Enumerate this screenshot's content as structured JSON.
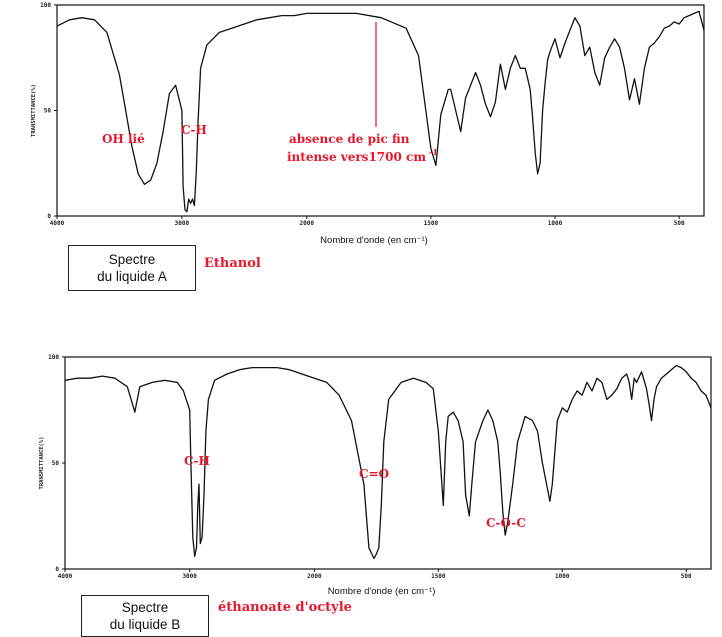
{
  "chart_data": [
    {
      "type": "line",
      "title": "",
      "xlabel": "Nombre d'onde (en cm⁻¹)",
      "ylabel": "TRANSMITTANCE(%)",
      "xlim": [
        4000,
        400
      ],
      "ylim": [
        0,
        100
      ],
      "x_ticks": [
        "4000",
        "3000",
        "2000",
        "1500",
        "1000",
        "500"
      ],
      "y_ticks": [
        "0",
        "50",
        "100"
      ],
      "grid": false,
      "series": [
        {
          "x": [
            4000,
            3900,
            3800,
            3700,
            3600,
            3500,
            3450,
            3400,
            3350,
            3300,
            3250,
            3200,
            3150,
            3100,
            3050,
            3000,
            2990,
            2975,
            2960,
            2945,
            2930,
            2915,
            2900,
            2885,
            2870,
            2850,
            2800,
            2700,
            2600,
            2500,
            2400,
            2300,
            2200,
            2100,
            2000,
            1900,
            1800,
            1700,
            1600,
            1550,
            1500,
            1480,
            1460,
            1445,
            1430,
            1420,
            1400,
            1380,
            1360,
            1340,
            1320,
            1300,
            1280,
            1260,
            1240,
            1220,
            1200,
            1180,
            1160,
            1140,
            1120,
            1100,
            1090,
            1080,
            1070,
            1060,
            1050,
            1040,
            1030,
            1020,
            1000,
            980,
            960,
            940,
            920,
            900,
            880,
            860,
            840,
            820,
            800,
            780,
            760,
            740,
            720,
            700,
            680,
            660,
            640,
            620,
            600,
            580,
            560,
            540,
            520,
            500,
            480,
            460,
            440,
            420,
            400
          ],
          "y": [
            90,
            93,
            94,
            93,
            87,
            67,
            50,
            33,
            20,
            15,
            17,
            25,
            40,
            58,
            62,
            50,
            14,
            3,
            2,
            8,
            6,
            8,
            5,
            20,
            45,
            70,
            81,
            87,
            89,
            91,
            93,
            94,
            95,
            95,
            96,
            96,
            96,
            94,
            89,
            76,
            32,
            24,
            48,
            54,
            60,
            60,
            50,
            40,
            56,
            62,
            68,
            62,
            53,
            47,
            54,
            72,
            60,
            70,
            76,
            70,
            70,
            60,
            46,
            30,
            20,
            25,
            50,
            63,
            74,
            78,
            84,
            75,
            82,
            88,
            94,
            90,
            76,
            80,
            68,
            62,
            75,
            80,
            84,
            80,
            70,
            55,
            65,
            53,
            70,
            80,
            82,
            85,
            89,
            90,
            92,
            91,
            94,
            95,
            96,
            97,
            88
          ]
        }
      ]
    },
    {
      "type": "line",
      "title": "",
      "xlabel": "Nombre d'onde (en cm⁻¹)",
      "ylabel": "TRANSMITTANCE(%)",
      "xlim": [
        4000,
        400
      ],
      "ylim": [
        0,
        100
      ],
      "x_ticks": [
        "4000",
        "3000",
        "2000",
        "1500",
        "1000",
        "500"
      ],
      "y_ticks": [
        "0",
        "50",
        "100"
      ],
      "grid": false,
      "series": [
        {
          "x": [
            4000,
            3900,
            3800,
            3700,
            3600,
            3500,
            3470,
            3440,
            3420,
            3400,
            3300,
            3200,
            3100,
            3050,
            3000,
            2990,
            2975,
            2960,
            2945,
            2935,
            2925,
            2915,
            2900,
            2885,
            2870,
            2850,
            2800,
            2700,
            2600,
            2500,
            2400,
            2300,
            2200,
            2100,
            2000,
            1950,
            1900,
            1850,
            1800,
            1780,
            1760,
            1750,
            1740,
            1730,
            1720,
            1700,
            1650,
            1600,
            1550,
            1520,
            1500,
            1480,
            1470,
            1460,
            1440,
            1420,
            1400,
            1390,
            1375,
            1365,
            1350,
            1320,
            1300,
            1280,
            1260,
            1250,
            1240,
            1230,
            1220,
            1200,
            1180,
            1150,
            1120,
            1100,
            1080,
            1060,
            1050,
            1040,
            1030,
            1020,
            1000,
            980,
            960,
            940,
            920,
            900,
            880,
            860,
            840,
            820,
            800,
            780,
            760,
            740,
            730,
            720,
            710,
            700,
            680,
            660,
            650,
            640,
            630,
            620,
            600,
            580,
            560,
            540,
            520,
            500,
            480,
            460,
            440,
            420,
            400
          ],
          "y": [
            89,
            90,
            90,
            91,
            90,
            86,
            80,
            74,
            80,
            86,
            88,
            89,
            88,
            84,
            75,
            50,
            15,
            6,
            10,
            30,
            40,
            12,
            15,
            35,
            65,
            80,
            89,
            92,
            94,
            95,
            95,
            95,
            94,
            92,
            90,
            88,
            82,
            70,
            40,
            10,
            5,
            7,
            10,
            30,
            60,
            80,
            88,
            90,
            88,
            85,
            65,
            30,
            60,
            72,
            74,
            70,
            60,
            35,
            25,
            40,
            60,
            70,
            75,
            70,
            60,
            45,
            27,
            16,
            22,
            40,
            60,
            72,
            70,
            65,
            50,
            38,
            32,
            40,
            55,
            70,
            76,
            74,
            80,
            84,
            82,
            88,
            84,
            90,
            88,
            80,
            82,
            85,
            90,
            92,
            88,
            80,
            90,
            88,
            93,
            85,
            78,
            70,
            80,
            86,
            90,
            92,
            94,
            96,
            95,
            93,
            90,
            88,
            84,
            82,
            76
          ]
        }
      ]
    }
  ],
  "spectrum_a": {
    "annotations": {
      "oh": "OH lié",
      "ch": "C-H",
      "absence_line1": "absence de pic fin",
      "absence_line2": "intense vers1700 cm",
      "absence_sup": "-1"
    },
    "box": {
      "line1": "Spectre",
      "line2": "du liquide A"
    },
    "compound": "Ethanol"
  },
  "spectrum_b": {
    "annotations": {
      "ch": "C-H",
      "co": "C=O",
      "coc": "C-O-C"
    },
    "box": {
      "line1": "Spectre",
      "line2": "du liquide B"
    },
    "compound": "éthanoate d'octyle"
  },
  "colors": {
    "annotation": "#e8162b",
    "curve": "#111111"
  }
}
